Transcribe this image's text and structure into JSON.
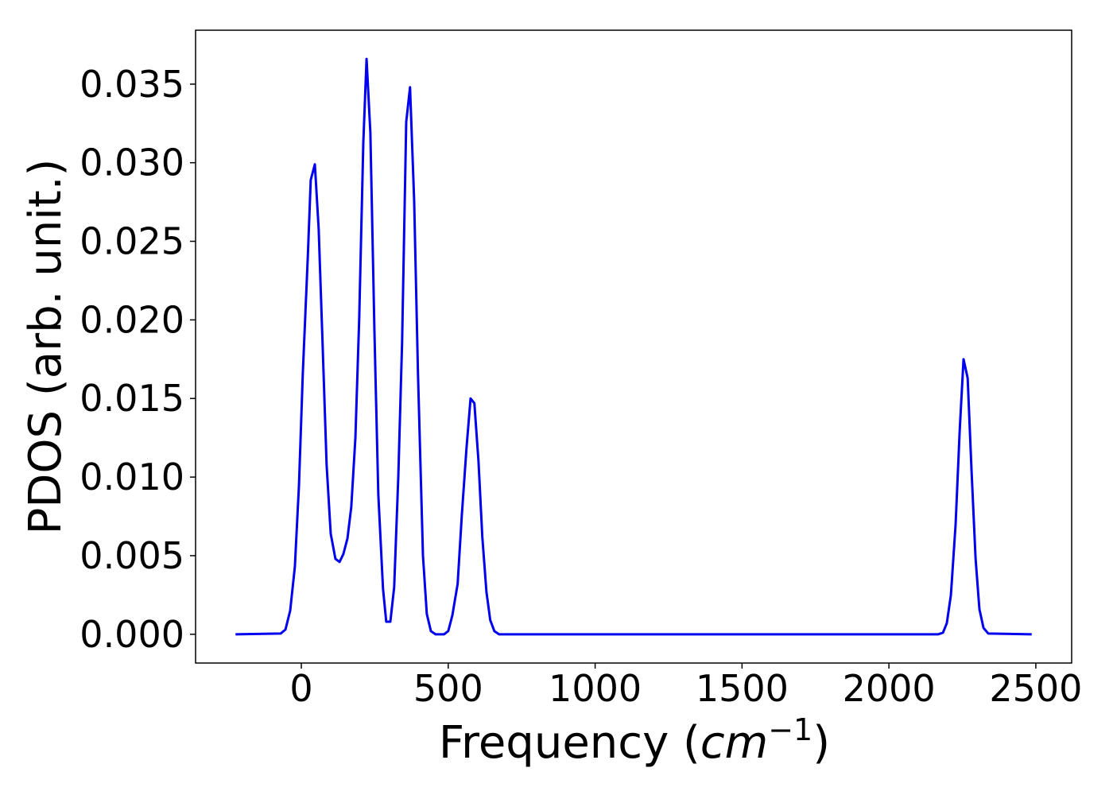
{
  "chart_data": {
    "type": "line",
    "xlabel": [
      "Frequency (",
      "cm",
      "−1",
      ")"
    ],
    "ylabel": "PDOS (arb. unit.)",
    "color": "#0000ee",
    "x": [
      -224,
      -70,
      -54,
      -38,
      -22,
      -8,
      5,
      22,
      32,
      46,
      59,
      73,
      86,
      100,
      116,
      130,
      143,
      157,
      170,
      184,
      197,
      211,
      222,
      235,
      249,
      262,
      278,
      289,
      303,
      316,
      330,
      343,
      357,
      370,
      384,
      397,
      414,
      427,
      441,
      457,
      486,
      500,
      514,
      532,
      546,
      562,
      576,
      589,
      603,
      616,
      630,
      643,
      657,
      673,
      2168,
      2184,
      2197,
      2211,
      2227,
      2241,
      2254,
      2268,
      2281,
      2295,
      2308,
      2322,
      2338,
      2486
    ],
    "values": [
      0,
      5e-05,
      0.0003,
      0.0015,
      0.0043,
      0.0095,
      0.0166,
      0.024,
      0.0289,
      0.0299,
      0.0258,
      0.0181,
      0.0108,
      0.0064,
      0.0048,
      0.0046,
      0.0051,
      0.0061,
      0.0081,
      0.0125,
      0.0201,
      0.0313,
      0.0366,
      0.0319,
      0.0191,
      0.0089,
      0.0029,
      0.0008,
      0.0008,
      0.003,
      0.01,
      0.0186,
      0.0326,
      0.0348,
      0.0276,
      0.0166,
      0.005,
      0.0013,
      0.0002,
      0,
      0,
      0.0002,
      0.0012,
      0.0032,
      0.0075,
      0.0118,
      0.015,
      0.0147,
      0.011,
      0.0062,
      0.0027,
      0.0009,
      0.0002,
      0,
      0,
      0.0001,
      0.0007,
      0.0025,
      0.007,
      0.013,
      0.0175,
      0.0163,
      0.0105,
      0.0048,
      0.0016,
      0.0004,
      5e-05,
      0
    ],
    "xlim": [
      -360,
      2622
    ],
    "ylim": [
      -0.00183,
      0.03843
    ],
    "xticks": [
      0,
      500,
      1000,
      1500,
      2000,
      2500
    ],
    "yticks": [
      {
        "value": 0,
        "label": "0.000"
      },
      {
        "value": 0.005,
        "label": "0.005"
      },
      {
        "value": 0.01,
        "label": "0.010"
      },
      {
        "value": 0.015,
        "label": "0.015"
      },
      {
        "value": 0.02,
        "label": "0.020"
      },
      {
        "value": 0.025,
        "label": "0.025"
      },
      {
        "value": 0.03,
        "label": "0.030"
      },
      {
        "value": 0.035,
        "label": "0.035"
      }
    ],
    "grid": false
  }
}
